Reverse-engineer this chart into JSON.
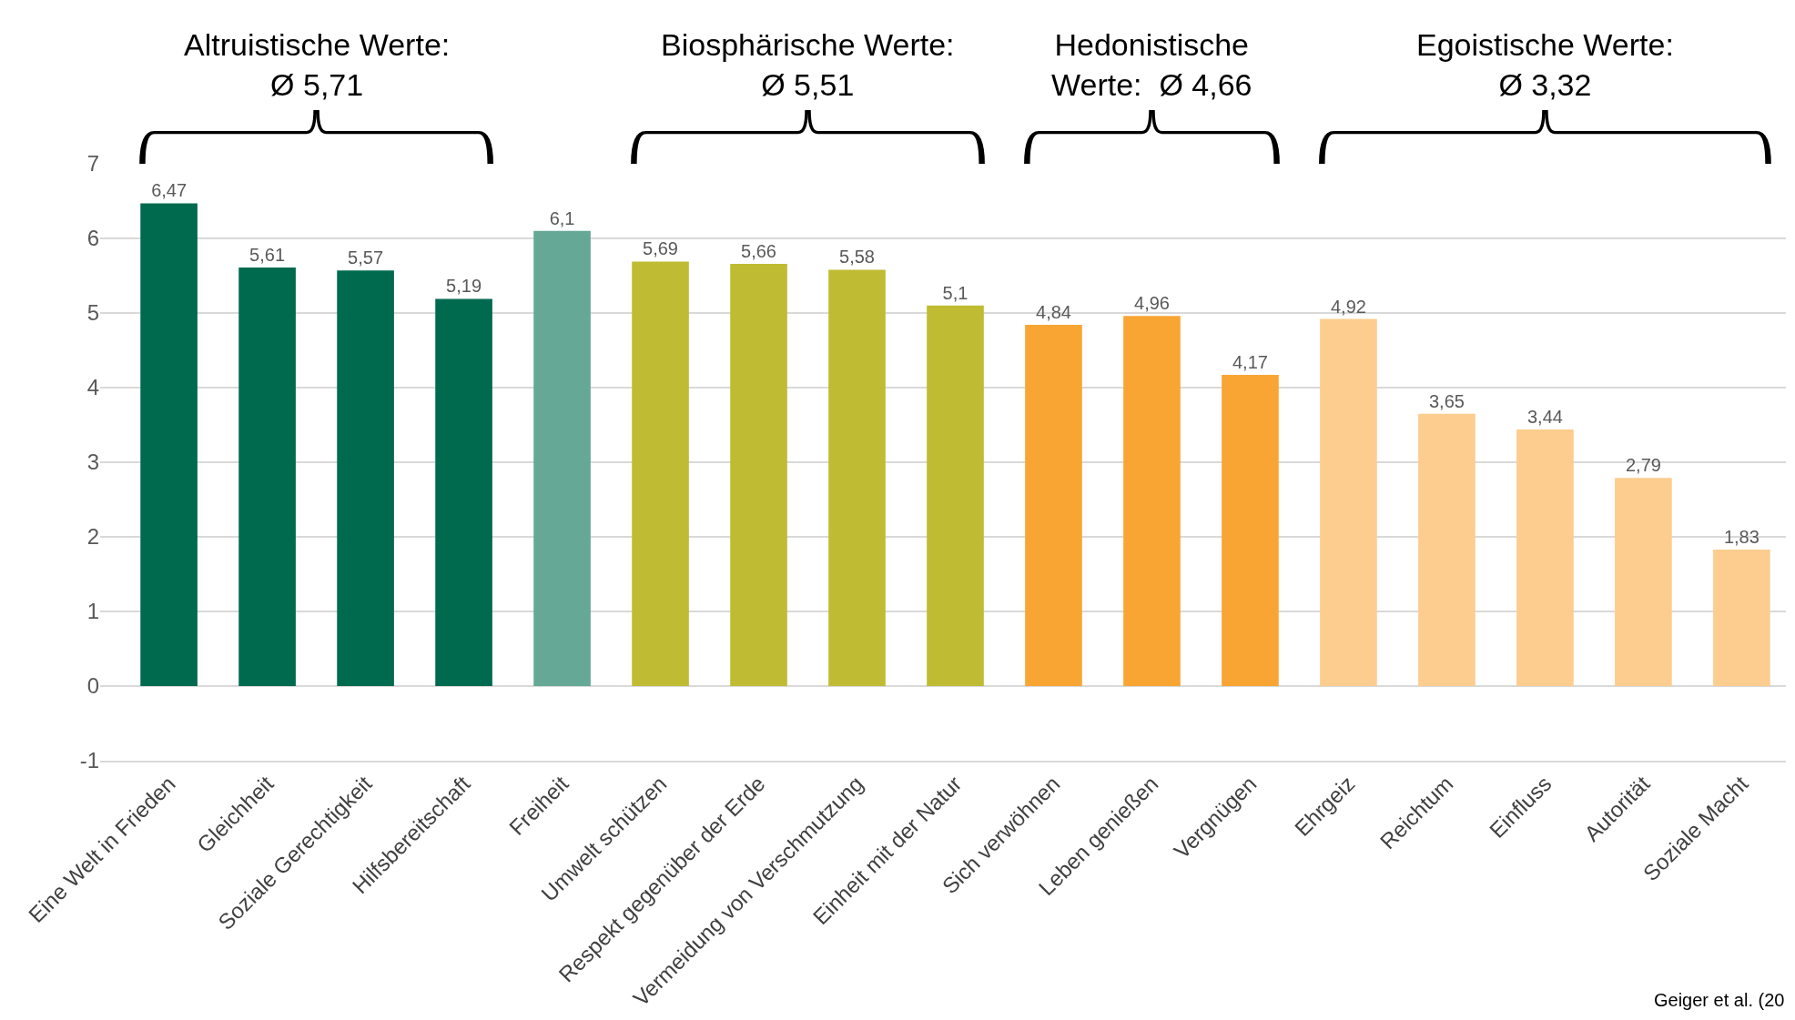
{
  "chart_data": {
    "type": "bar",
    "categories": [
      "Eine Welt in Frieden",
      "Gleichheit",
      "Soziale Gerechtigkeit",
      "Hilfsbereitschaft",
      "Freiheit",
      "Umwelt schützen",
      "Respekt gegenüber der Erde",
      "Vermeidung von Verschmutzung",
      "Einheit mit der Natur",
      "Sich verwöhnen",
      "Leben genießen",
      "Vergnügen",
      "Ehrgeiz",
      "Reichtum",
      "Einfluss",
      "Autorität",
      "Soziale Macht"
    ],
    "values": [
      6.47,
      5.61,
      5.57,
      5.19,
      6.1,
      5.69,
      5.66,
      5.58,
      5.1,
      4.84,
      4.96,
      4.17,
      4.92,
      3.65,
      3.44,
      2.79,
      1.83
    ],
    "value_labels": [
      "6,47",
      "5,61",
      "5,57",
      "5,19",
      "6,1",
      "5,69",
      "5,66",
      "5,58",
      "5,1",
      "4,84",
      "4,96",
      "4,17",
      "4,92",
      "3,65",
      "3,44",
      "2,79",
      "1,83"
    ],
    "colors": [
      "#006a4e",
      "#006a4e",
      "#006a4e",
      "#006a4e",
      "#66a896",
      "#bfbc33",
      "#bfbc33",
      "#bfbc33",
      "#bfbc33",
      "#f8a533",
      "#f8a533",
      "#f8a533",
      "#fccd8e",
      "#fccd8e",
      "#fccd8e",
      "#fccd8e",
      "#fccd8e"
    ],
    "ylim": [
      -1,
      7
    ],
    "yticks": [
      -1,
      0,
      1,
      2,
      3,
      4,
      5,
      6,
      7
    ],
    "grid": "y",
    "legend": false,
    "annotations": [
      "Altruistische Werte:\nØ 5,71",
      "Biosphärische Werte:\nØ 5,51",
      "Hedonistische\nWerte:  Ø 4,66",
      "Egoistische Werte:\nØ 3,32",
      "Geiger et al. (20"
    ]
  }
}
